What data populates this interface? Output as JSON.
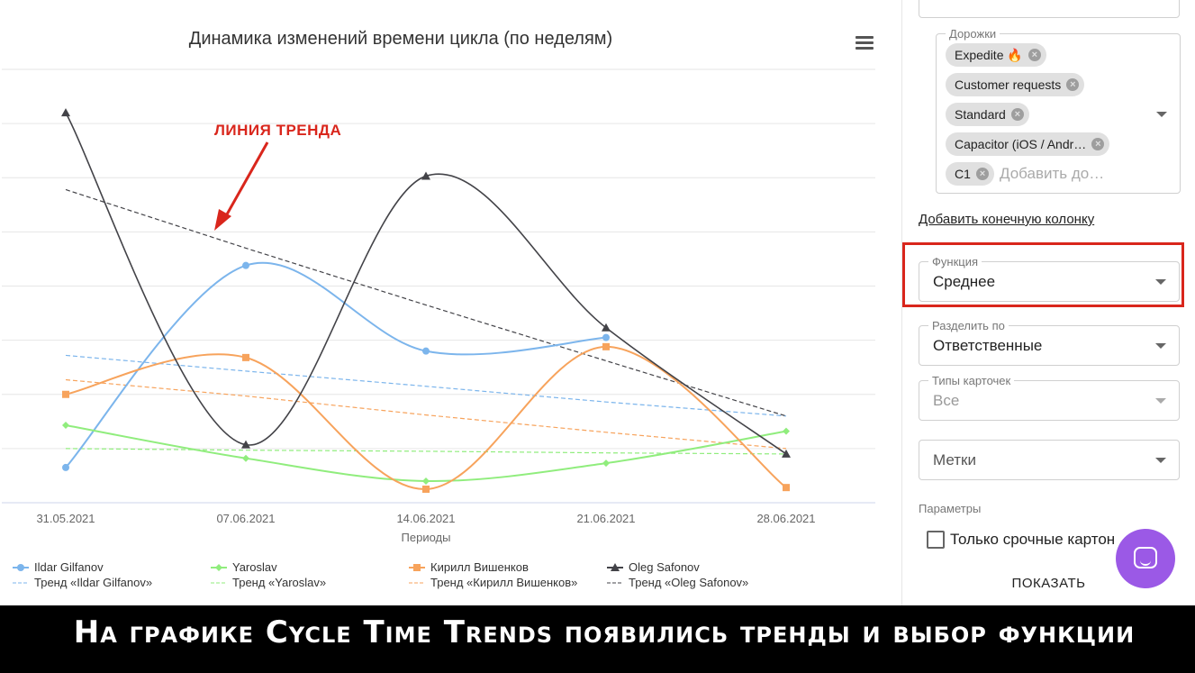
{
  "chart_data": {
    "type": "line",
    "title": "Динамика изменений времени цикла (по неделям)",
    "xlabel": "Периоды",
    "ylabel": "",
    "categories": [
      "31.05.2021",
      "07.06.2021",
      "14.06.2021",
      "21.06.2021",
      "28.06.2021"
    ],
    "ylim": [
      0,
      8
    ],
    "grid": true,
    "series": [
      {
        "name": "Ildar Gilfanov",
        "color": "#7cb5ec",
        "marker": "circle",
        "values": [
          0.65,
          4.38,
          2.8,
          3.05,
          null
        ]
      },
      {
        "name": "Yaroslav",
        "color": "#90ed7d",
        "marker": "diamond",
        "values": [
          1.43,
          0.82,
          0.4,
          0.73,
          1.32
        ]
      },
      {
        "name": "Кирилл Вишенков",
        "color": "#f7a35c",
        "marker": "square",
        "values": [
          2.0,
          2.68,
          0.25,
          2.88,
          0.28
        ]
      },
      {
        "name": "Oleg Safonov",
        "color": "#434348",
        "marker": "triangle",
        "values": [
          7.2,
          1.07,
          6.03,
          3.23,
          0.9
        ]
      }
    ],
    "trends": [
      {
        "name": "Тренд «Ildar Gilfanov»",
        "color": "#7cb5ec",
        "values": [
          2.72,
          2.43,
          2.15,
          1.86,
          1.6
        ]
      },
      {
        "name": "Тренд «Yaroslav»",
        "color": "#90ed7d",
        "values": [
          1.0,
          0.97,
          0.95,
          0.92,
          0.9
        ]
      },
      {
        "name": "Тренд «Кирилл Вишенков»",
        "color": "#f7a35c",
        "values": [
          2.27,
          1.97,
          1.62,
          1.3,
          1.0
        ]
      },
      {
        "name": "Тренд «Oleg Safonov»",
        "color": "#434348",
        "values": [
          5.78,
          4.7,
          3.65,
          2.62,
          1.6
        ]
      }
    ],
    "legend": "bottom",
    "annotation": "ЛИНИЯ ТРЕНДА"
  },
  "chart_menu_icon": "hamburger-icon",
  "panel": {
    "lanes": {
      "label": "Дорожки",
      "chips": [
        "Expedite 🔥",
        "Customer requests",
        "Standard",
        "Capacitor (iOS / Andr…",
        "C1"
      ],
      "placeholder": "Добавить до…"
    },
    "add_end_column_link": "Добавить конечную колонку",
    "function": {
      "label": "Функция",
      "value": "Среднее"
    },
    "split_by": {
      "label": "Разделить по",
      "value": "Ответственные"
    },
    "card_types": {
      "label": "Типы карточек",
      "value": "Все"
    },
    "tags": {
      "value": "Метки"
    },
    "params_label": "Параметры",
    "urgent_only": {
      "label": "Только срочные картон",
      "checked": false
    },
    "show_button": "ПОКАЗАТЬ"
  },
  "chat_icon": "chat-icon",
  "highlight_color": "#d9261c",
  "banner": "На графике Cycle Time Trends появились тренды и выбор функции"
}
